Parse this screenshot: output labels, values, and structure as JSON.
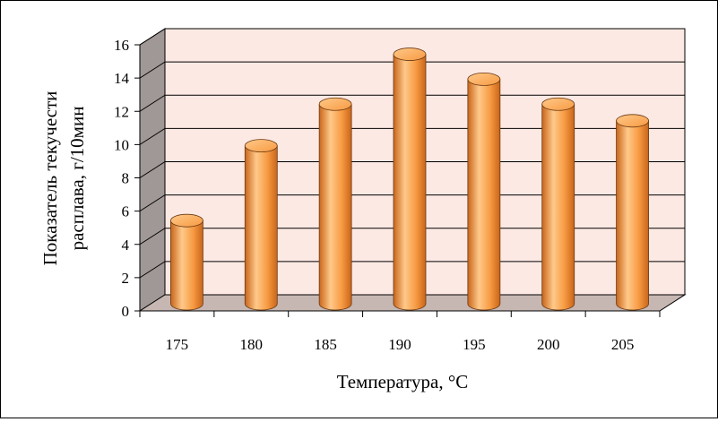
{
  "chart_data": {
    "type": "bar",
    "categories": [
      "175",
      "180",
      "185",
      "190",
      "195",
      "200",
      "205"
    ],
    "values": [
      5,
      9.5,
      12,
      15,
      13.5,
      12,
      11
    ],
    "title": "",
    "xlabel": "Температура, °С",
    "ylabel_lines": [
      "Показатель текучести",
      "расплава, г/10мин"
    ],
    "ylim": [
      0,
      16
    ],
    "yticks": [
      0,
      2,
      4,
      6,
      8,
      10,
      12,
      14,
      16
    ],
    "grid": true,
    "legend": "none",
    "colors": {
      "bar_light": "#ffc98a",
      "bar_mid": "#f79a42",
      "bar_dark": "#c8651a",
      "back_wall": "#fde9e4",
      "side_wall": "#a09896",
      "floor": "#c7b7b3",
      "grid": "#000000"
    }
  }
}
